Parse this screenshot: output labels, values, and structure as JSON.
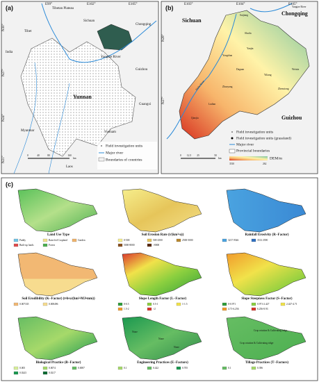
{
  "panel_a": {
    "label": "(a)",
    "lon": [
      "E99°",
      "E102°",
      "E105°"
    ],
    "lat": [
      "N30°",
      "N27°",
      "N24°",
      "N21°"
    ],
    "places": [
      "Tibetan Plateau",
      "Tibet",
      "Sichuan",
      "Chongqing",
      "India",
      "Guizhou",
      "Yunnan",
      "Guangxi",
      "Myanmar",
      "Vietnam",
      "Laos",
      "Yangtze River"
    ],
    "legend": [
      "Field investigation units",
      "Major river",
      "Boundaries of countries"
    ],
    "scale": [
      "0",
      "40",
      "80",
      "160",
      "km"
    ]
  },
  "panel_b": {
    "label": "(b)",
    "lon": [
      "E103°",
      "E104°",
      "E105°"
    ],
    "lat": [
      "N28°",
      "N27°"
    ],
    "places": [
      "Sichuan",
      "Chongqing",
      "Guizhou",
      "Yangtze River",
      "Jinsha River",
      "Suijiang",
      "Shuifu",
      "Yanjin",
      "Yongshan",
      "Daguan",
      "Yiliang",
      "Zhaoyang",
      "Ludian",
      "Qiaojia",
      "Zhenxiong",
      "Weixin"
    ],
    "legend": [
      "Field investigation units",
      "Field investigation units (grassland)",
      "Major river",
      "Provincial boundaries",
      "DEM/m"
    ],
    "dem_range": [
      "3510",
      "262"
    ],
    "scale": [
      "0",
      "12.5",
      "25",
      "50",
      "km"
    ]
  },
  "panel_c": {
    "label": "(c)",
    "maps": [
      {
        "title": "Land Use Type",
        "legend": [
          {
            "label": "Paddy",
            "color": "#6fc6e8"
          },
          {
            "label": "Rain-fed Cropland",
            "color": "#f3e08a"
          },
          {
            "label": "Garden",
            "color": "#f0b36b"
          },
          {
            "label": "Built-up lands",
            "color": "#e04b4b"
          },
          {
            "label": "Forest",
            "color": "#4caf50"
          }
        ]
      },
      {
        "title": "Soil Erosion Rate (t/(km²•a))",
        "legend": [
          {
            "label": "0-500",
            "color": "#f6ee8c"
          },
          {
            "label": "500-2500",
            "color": "#e6c55a"
          },
          {
            "label": "2500-5000",
            "color": "#b8872e"
          },
          {
            "label": "5000-8000",
            "color": "#8a4f1c"
          },
          {
            "label": ">8000",
            "color": "#5a2a0e"
          }
        ]
      },
      {
        "title": "Rainfall Erosivity (R−Factor)",
        "legend": [
          {
            "label": "3217.9546",
            "color": "#4aa3e0"
          },
          {
            "label": "3513.3590",
            "color": "#2f6fc0"
          }
        ]
      },
      {
        "title": "Soil Erodibility (K−Factor) (t•h•a/(hm²•MJ•mm))",
        "legend": [
          {
            "label": "0.007335",
            "color": "#f2b873"
          },
          {
            "label": "0.008496",
            "color": "#f7dc8f"
          }
        ]
      },
      {
        "title": "Slope Length Factor (L−Factor)",
        "legend": [
          {
            "label": "0-0.5",
            "color": "#2e9e3a"
          },
          {
            "label": "0.5-1",
            "color": "#8bcf3f"
          },
          {
            "label": "1-1.5",
            "color": "#f1e24a"
          },
          {
            "label": "1.5-2",
            "color": "#f19a2b"
          },
          {
            "label": ">2",
            "color": "#d9342b"
          }
        ]
      },
      {
        "title": "Slope Steepness Factor (S−Factor)",
        "legend": [
          {
            "label": "0-0.971",
            "color": "#2e9e3a"
          },
          {
            "label": "0.971-2.427",
            "color": "#8bcf3f"
          },
          {
            "label": "2.427-4.71",
            "color": "#f1e24a"
          },
          {
            "label": "4.71-6.256",
            "color": "#f19a2b"
          },
          {
            "label": "6.256-8.93",
            "color": "#d9342b"
          }
        ]
      },
      {
        "title": "Biological Practice (B−Factor)",
        "legend": [
          {
            "label": "0.005",
            "color": "#d8ef9a"
          },
          {
            "label": "0.0074",
            "color": "#a6d96a"
          },
          {
            "label": "0.0087",
            "color": "#66bd63"
          },
          {
            "label": "0.0243",
            "color": "#1a9850"
          },
          {
            "label": "0.0217",
            "color": "#0b6b32"
          }
        ]
      },
      {
        "title": "Engineering Practices (E−Factors)",
        "legend": [
          {
            "label": "0.1",
            "color": "#a6d96a"
          },
          {
            "label": "0.422",
            "color": "#66bd63"
          },
          {
            "label": "0.705",
            "color": "#1a9850"
          }
        ]
      },
      {
        "title": "Tillage Practices (T−Factors)",
        "legend": [
          {
            "label": "0.1",
            "color": "#66bd63"
          },
          {
            "label": "0.396",
            "color": "#a6d96a"
          }
        ]
      }
    ],
    "notes": [
      "None",
      "None",
      "None",
      "Crop rotation & Cultivating ridge",
      "Crop rotation & Cultivating ridge"
    ]
  }
}
